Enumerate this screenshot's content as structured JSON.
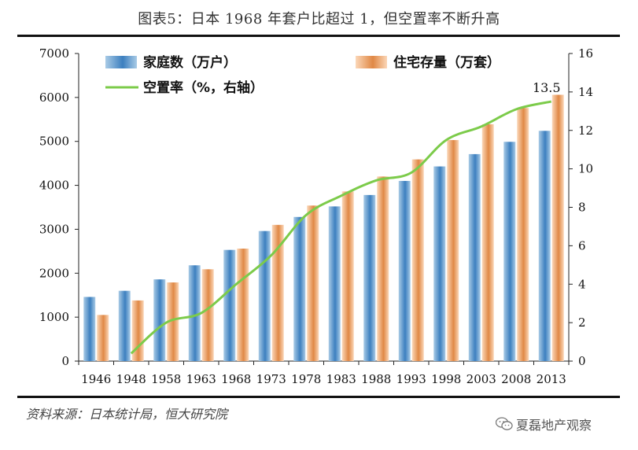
{
  "title": "图表5：日本 1968 年套户比超过 1，但空置率不断升高",
  "source": "资料来源：日本统计局，恒大研究院",
  "watermark": "夏磊地产观察",
  "colors": {
    "bar_household_light": "#a9cbe6",
    "bar_household_dark": "#3c7fbf",
    "bar_housing_light": "#fbd7b8",
    "bar_housing_dark": "#e08845",
    "line_vacancy": "#7ccb4a"
  },
  "chart_data": {
    "type": "bar",
    "categories": [
      "1946",
      "1948",
      "1958",
      "1963",
      "1968",
      "1973",
      "1978",
      "1983",
      "1988",
      "1993",
      "1998",
      "2003",
      "2008",
      "2013"
    ],
    "series": [
      {
        "name": "家庭数（万户）",
        "type": "bar",
        "axis": "left",
        "values": [
          1460,
          1600,
          1860,
          2180,
          2530,
          2960,
          3280,
          3520,
          3780,
          4100,
          4430,
          4710,
          4990,
          5240
        ]
      },
      {
        "name": "住宅存量（万套）",
        "type": "bar",
        "axis": "left",
        "values": [
          1050,
          1380,
          1790,
          2090,
          2560,
          3100,
          3540,
          3860,
          4200,
          4590,
          5030,
          5390,
          5760,
          6060
        ]
      },
      {
        "name": "空置率（%，右轴）",
        "type": "line",
        "axis": "right",
        "values": [
          null,
          0.4,
          2.0,
          2.5,
          4.0,
          5.5,
          7.6,
          8.6,
          9.4,
          9.8,
          11.5,
          12.2,
          13.1,
          13.5
        ]
      }
    ],
    "y_left": {
      "min": 0,
      "max": 7000,
      "ticks": [
        0,
        1000,
        2000,
        3000,
        4000,
        5000,
        6000,
        7000
      ]
    },
    "y_right": {
      "min": 0,
      "max": 16,
      "ticks": [
        0,
        2,
        4,
        6,
        8,
        10,
        12,
        14,
        16
      ]
    },
    "annotations": [
      {
        "series": 2,
        "index": 13,
        "text": "13.5"
      }
    ],
    "legend_position": "top",
    "grid": false
  }
}
